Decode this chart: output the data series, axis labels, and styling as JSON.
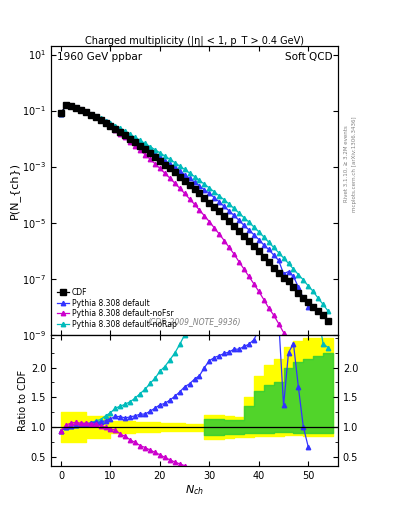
{
  "title_left": "1960 GeV ppbar",
  "title_right": "Soft QCD",
  "plot_title": "Charged multiplicity (|η| < 1, p_T > 0.4 GeV)",
  "ylabel_top": "P(N_{ch})",
  "ylabel_bottom": "Ratio to CDF",
  "annotation": "(CDF_2009_NOTE_9936)",
  "right_label_top": "Rivet 3.1.10, ≥ 3.2M events",
  "right_label_bottom": "mcplots.cern.ch [arXiv:1306.3436]",
  "legend": [
    "CDF",
    "Pythia 8.308 default",
    "Pythia 8.308 default-noFsr",
    "Pythia 8.308 default-noRap"
  ],
  "colors": {
    "CDF": "#000000",
    "default": "#3333ff",
    "noFsr": "#cc00cc",
    "noRap": "#00bbbb"
  },
  "xlim": [
    -2,
    56
  ],
  "ylim_top_lo": 1e-09,
  "ylim_top_hi": 20.0,
  "ylim_bottom_lo": 0.35,
  "ylim_bottom_hi": 2.55,
  "nch_CDF": [
    0,
    1,
    2,
    3,
    4,
    5,
    6,
    7,
    8,
    9,
    10,
    11,
    12,
    13,
    14,
    15,
    16,
    17,
    18,
    19,
    20,
    21,
    22,
    23,
    24,
    25,
    26,
    27,
    28,
    29,
    30,
    31,
    32,
    33,
    34,
    35,
    36,
    37,
    38,
    39,
    40,
    41,
    42,
    43,
    44,
    45,
    46,
    47,
    48,
    49,
    50,
    51,
    52,
    53,
    54
  ],
  "P_CDF": [
    0.08,
    0.155,
    0.145,
    0.125,
    0.105,
    0.087,
    0.072,
    0.058,
    0.047,
    0.037,
    0.029,
    0.022,
    0.017,
    0.013,
    0.0098,
    0.0074,
    0.0055,
    0.0041,
    0.003,
    0.0022,
    0.0016,
    0.00118,
    0.00086,
    0.00062,
    0.00044,
    0.00031,
    0.00022,
    0.000155,
    0.00011,
    7.5e-05,
    5.2e-05,
    3.6e-05,
    2.5e-05,
    1.7e-05,
    1.15e-05,
    7.8e-06,
    5.2e-06,
    3.4e-06,
    2.3e-06,
    1.5e-06,
    9.5e-07,
    6e-07,
    3.8e-07,
    2.4e-07,
    1.6e-07,
    1.1e-07,
    8e-08,
    5e-08,
    3e-08,
    2e-08,
    1.5e-08,
    1e-08,
    7e-09,
    5e-09,
    3e-09
  ],
  "nch_default": [
    0,
    1,
    2,
    3,
    4,
    5,
    6,
    7,
    8,
    9,
    10,
    11,
    12,
    13,
    14,
    15,
    16,
    17,
    18,
    19,
    20,
    21,
    22,
    23,
    24,
    25,
    26,
    27,
    28,
    29,
    30,
    31,
    32,
    33,
    34,
    35,
    36,
    37,
    38,
    39,
    40,
    41,
    42,
    43,
    44,
    45,
    46,
    47,
    48,
    49,
    50
  ],
  "P_default": [
    0.075,
    0.155,
    0.148,
    0.13,
    0.11,
    0.092,
    0.077,
    0.063,
    0.051,
    0.041,
    0.033,
    0.026,
    0.02,
    0.015,
    0.0115,
    0.0088,
    0.0067,
    0.005,
    0.0038,
    0.0029,
    0.0022,
    0.00165,
    0.00125,
    0.00094,
    0.0007,
    0.00052,
    0.00038,
    0.00028,
    0.000205,
    0.00015,
    0.00011,
    7.8e-05,
    5.5e-05,
    3.8e-05,
    2.6e-05,
    1.8e-05,
    1.2e-05,
    8e-06,
    5.5e-06,
    3.7e-06,
    2.5e-06,
    1.6e-06,
    1.1e-06,
    7e-07,
    4.5e-07,
    1.5e-07,
    1.8e-07,
    1.2e-07,
    5e-08,
    2e-08,
    1e-08
  ],
  "nch_noFsr": [
    0,
    1,
    2,
    3,
    4,
    5,
    6,
    7,
    8,
    9,
    10,
    11,
    12,
    13,
    14,
    15,
    16,
    17,
    18,
    19,
    20,
    21,
    22,
    23,
    24,
    25,
    26,
    27,
    28,
    29,
    30,
    31,
    32,
    33,
    34,
    35,
    36,
    37,
    38,
    39,
    40,
    41,
    42,
    43,
    44,
    45,
    46,
    47,
    48
  ],
  "P_noFsr": [
    0.075,
    0.16,
    0.155,
    0.135,
    0.112,
    0.093,
    0.076,
    0.061,
    0.048,
    0.037,
    0.028,
    0.021,
    0.015,
    0.011,
    0.0077,
    0.0055,
    0.0038,
    0.0027,
    0.00185,
    0.00127,
    0.00086,
    0.00058,
    0.00039,
    0.000258,
    0.000169,
    0.00011,
    7e-05,
    4.5e-05,
    2.8e-05,
    1.75e-05,
    1.08e-05,
    6.5e-06,
    3.9e-06,
    2.3e-06,
    1.3e-06,
    7.5e-07,
    4e-07,
    2.2e-07,
    1.2e-07,
    6.5e-08,
    3.5e-08,
    1.8e-08,
    9e-09,
    5e-09,
    2.5e-09,
    1.2e-09,
    6e-10,
    3e-10,
    1.5e-10
  ],
  "nch_noRap": [
    0,
    1,
    2,
    3,
    4,
    5,
    6,
    7,
    8,
    9,
    10,
    11,
    12,
    13,
    14,
    15,
    16,
    17,
    18,
    19,
    20,
    21,
    22,
    23,
    24,
    25,
    26,
    27,
    28,
    29,
    30,
    31,
    32,
    33,
    34,
    35,
    36,
    37,
    38,
    39,
    40,
    41,
    42,
    43,
    44,
    45,
    46,
    47,
    48,
    49,
    50,
    51,
    52,
    53,
    54
  ],
  "P_noRap": [
    0.075,
    0.155,
    0.148,
    0.13,
    0.11,
    0.092,
    0.077,
    0.064,
    0.053,
    0.044,
    0.036,
    0.029,
    0.023,
    0.018,
    0.014,
    0.011,
    0.0086,
    0.0067,
    0.0052,
    0.004,
    0.0031,
    0.00238,
    0.00183,
    0.00139,
    0.00105,
    0.00079,
    0.00059,
    0.00044,
    0.00032,
    0.000235,
    0.000172,
    0.000125,
    9e-05,
    6.5e-05,
    4.6e-05,
    3.2e-05,
    2.2e-05,
    1.5e-05,
    1.05e-05,
    7e-06,
    4.7e-06,
    3.1e-06,
    2e-06,
    1.3e-06,
    8.5e-07,
    5.5e-07,
    3.5e-07,
    2.2e-07,
    1.4e-07,
    9e-08,
    5.5e-08,
    3.5e-08,
    2e-08,
    1.2e-08,
    7e-09
  ],
  "ratio_yticks": [
    0.5,
    1.0,
    1.5,
    2.0
  ],
  "green_band_edges": [
    29,
    31,
    33,
    35,
    37,
    39,
    41,
    43,
    45,
    47,
    49,
    51,
    53,
    55
  ],
  "green_band_lo": [
    0.87,
    0.87,
    0.88,
    0.88,
    0.9,
    0.9,
    0.9,
    0.92,
    0.92,
    0.9,
    0.9,
    0.9,
    0.9
  ],
  "green_band_hi": [
    1.13,
    1.13,
    1.12,
    1.12,
    1.35,
    1.6,
    1.7,
    1.75,
    2.0,
    2.1,
    2.15,
    2.2,
    2.25
  ],
  "yellow_band_edges": [
    0,
    5,
    10,
    15,
    20,
    25,
    29,
    31,
    33,
    35,
    37,
    39,
    41,
    43,
    45,
    47,
    49,
    51,
    53,
    55
  ],
  "yellow_band_lo": [
    0.75,
    0.82,
    0.9,
    0.92,
    0.93,
    0.94,
    0.8,
    0.8,
    0.82,
    0.83,
    0.83,
    0.85,
    0.85,
    0.85,
    0.87,
    0.87,
    0.85,
    0.85,
    0.85
  ],
  "yellow_band_hi": [
    1.25,
    1.18,
    1.1,
    1.08,
    1.07,
    1.06,
    1.2,
    1.2,
    1.18,
    1.17,
    1.5,
    1.85,
    2.05,
    2.15,
    2.35,
    2.45,
    2.5,
    2.5,
    2.5
  ]
}
